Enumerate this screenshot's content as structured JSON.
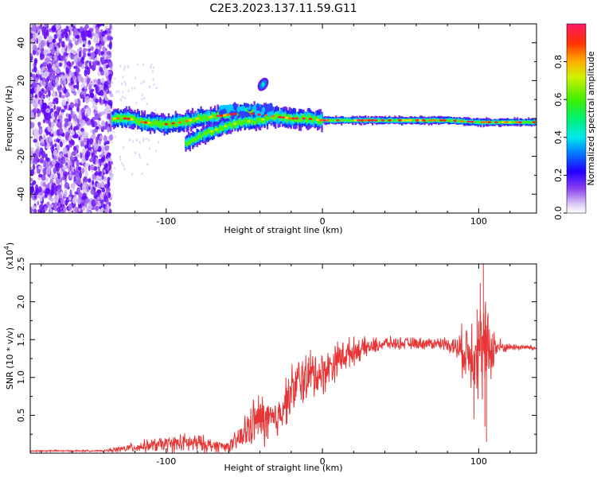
{
  "title": "C2E3.2023.137.11.59.G11",
  "chart_data": [
    {
      "type": "heatmap",
      "xlabel": "Height of straight line (km)",
      "ylabel": "Frequency (Hz)",
      "xlim": [
        -187,
        137
      ],
      "ylim": [
        -50,
        50
      ],
      "xticks": [
        -100,
        0,
        100
      ],
      "yticks": [
        -40,
        -20,
        0,
        20,
        40
      ],
      "colorbar": {
        "label": "Normalized spectral amplitude",
        "range": [
          0,
          1
        ],
        "ticks": [
          "0.0",
          "0.2",
          "0.4",
          "0.6",
          "0.8"
        ],
        "colors": [
          "#ffffff",
          "#d9c6f3",
          "#8a3ff0",
          "#5a00ff",
          "#0016ff",
          "#0096ff",
          "#00f0f0",
          "#00f070",
          "#3cf000",
          "#c8f000",
          "#ffd000",
          "#ff7000",
          "#ff1a1a",
          "#ff1a60"
        ]
      },
      "noise_region_x": [
        -187,
        -135
      ],
      "ridge": [
        {
          "x": -135,
          "y": 0
        },
        {
          "x": -125,
          "y": 0
        },
        {
          "x": -115,
          "y": -2
        },
        {
          "x": -100,
          "y": -3
        },
        {
          "x": -90,
          "y": -2
        },
        {
          "x": -80,
          "y": 0
        },
        {
          "x": -70,
          "y": 1
        },
        {
          "x": -60,
          "y": 2
        },
        {
          "x": -50,
          "y": 3
        },
        {
          "x": -40,
          "y": 2
        },
        {
          "x": -30,
          "y": 1
        },
        {
          "x": -20,
          "y": 0
        },
        {
          "x": -10,
          "y": 0
        },
        {
          "x": 0,
          "y": -1
        },
        {
          "x": 20,
          "y": -1
        },
        {
          "x": 40,
          "y": -1
        },
        {
          "x": 60,
          "y": -1
        },
        {
          "x": 80,
          "y": -1
        },
        {
          "x": 100,
          "y": -2
        },
        {
          "x": 120,
          "y": -2
        },
        {
          "x": 137,
          "y": -2
        }
      ],
      "branch": [
        {
          "x": -88,
          "y": -13
        },
        {
          "x": -75,
          "y": -8
        },
        {
          "x": -62,
          "y": -4
        },
        {
          "x": -52,
          "y": -2
        },
        {
          "x": -42,
          "y": -1
        },
        {
          "x": -35,
          "y": 0
        }
      ],
      "blob": {
        "x": -38,
        "y": 18
      }
    },
    {
      "type": "line",
      "xlabel": "Height of straight line (km)",
      "ylabel": "SNR (10 * v/v)",
      "scale_label": "(x10",
      "scale_exp": "4",
      "xlim": [
        -187,
        137
      ],
      "ylim": [
        0,
        25000
      ],
      "xticks": [
        -100,
        0,
        100
      ],
      "yticks": [
        5000,
        10000,
        15000,
        20000,
        25000
      ],
      "ytick_labels": [
        "0.5",
        "1.0",
        "1.5",
        "2.0",
        "2.5"
      ],
      "series": [
        {
          "name": "SNR",
          "color": "#e83535",
          "x": [
            -187,
            -170,
            -150,
            -140,
            -130,
            -120,
            -110,
            -100,
            -90,
            -80,
            -70,
            -60,
            -55,
            -50,
            -45,
            -40,
            -35,
            -30,
            -25,
            -20,
            -15,
            -10,
            -5,
            0,
            5,
            10,
            20,
            30,
            40,
            50,
            60,
            70,
            80,
            85,
            90,
            95,
            100,
            105,
            110,
            115,
            120,
            130,
            137
          ],
          "mean": [
            300,
            300,
            300,
            300,
            500,
            800,
            1000,
            1200,
            1300,
            1300,
            1000,
            900,
            1500,
            2500,
            4000,
            4500,
            4200,
            4000,
            6500,
            8000,
            9500,
            10000,
            10500,
            10500,
            11500,
            12500,
            13500,
            14000,
            14500,
            14500,
            14500,
            14500,
            14500,
            14000,
            13500,
            13500,
            14000,
            13500,
            14000,
            14000,
            14000,
            14000,
            13800
          ],
          "amp": [
            100,
            100,
            100,
            100,
            400,
            700,
            900,
            1000,
            1300,
            1300,
            900,
            700,
            1500,
            2500,
            3000,
            3500,
            3500,
            3000,
            3000,
            3500,
            3500,
            3500,
            3500,
            3000,
            2500,
            2500,
            1800,
            1200,
            900,
            800,
            800,
            800,
            900,
            1500,
            3500,
            5000,
            7000,
            6500,
            2500,
            800,
            500,
            400,
            400
          ]
        }
      ]
    }
  ]
}
